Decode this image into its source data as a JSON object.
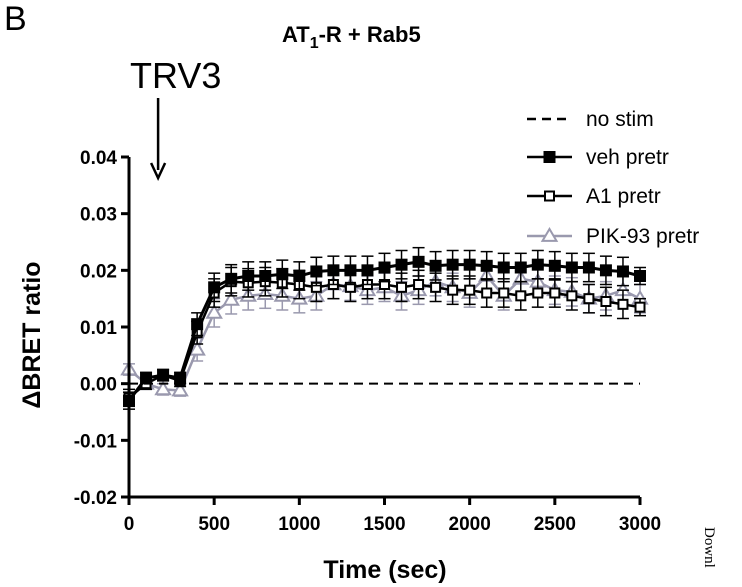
{
  "panel_label": "B",
  "watermark": "Downl",
  "chart_data": {
    "type": "line",
    "title": {
      "prefix": "AT",
      "subscript": "1",
      "suffix": "-R + Rab5"
    },
    "annotation": {
      "text": "TRV3",
      "x": 300
    },
    "xlabel": "Time (sec)",
    "ylabel": "ΔBRET ratio",
    "xlim": [
      0,
      3000
    ],
    "ylim": [
      -0.02,
      0.04
    ],
    "xticks": [
      0,
      500,
      1000,
      1500,
      2000,
      2500,
      3000
    ],
    "yticks": [
      -0.02,
      -0.01,
      0.0,
      0.01,
      0.02,
      0.03,
      0.04
    ],
    "ytick_labels": [
      "-0.02",
      "-0.01",
      "0.00",
      "0.01",
      "0.02",
      "0.03",
      "0.04"
    ],
    "xtick_labels": [
      "0",
      "500",
      "1000",
      "1500",
      "2000",
      "2500",
      "3000"
    ],
    "legend_position": "top-right",
    "series": [
      {
        "name": "no stim",
        "style": "dashed",
        "color": "#000000",
        "marker": "none",
        "x": [
          0,
          3000
        ],
        "y": [
          0.0,
          0.0
        ],
        "err": [
          0,
          0
        ]
      },
      {
        "name": "veh pretr",
        "style": "solid",
        "color": "#000000",
        "marker": "filled-square",
        "x": [
          0,
          100,
          200,
          300,
          400,
          500,
          600,
          700,
          800,
          900,
          1000,
          1100,
          1200,
          1300,
          1400,
          1500,
          1600,
          1700,
          1800,
          1900,
          2000,
          2100,
          2200,
          2300,
          2400,
          2500,
          2600,
          2700,
          2800,
          2900,
          3000
        ],
        "y": [
          -0.003,
          0.001,
          0.0015,
          0.001,
          0.0105,
          0.017,
          0.0185,
          0.019,
          0.019,
          0.0193,
          0.019,
          0.0198,
          0.02,
          0.02,
          0.02,
          0.0205,
          0.021,
          0.0215,
          0.0208,
          0.021,
          0.021,
          0.0208,
          0.0205,
          0.0205,
          0.021,
          0.0208,
          0.0205,
          0.0205,
          0.02,
          0.0198,
          0.019
        ],
        "err": [
          0.0015,
          0.001,
          0.001,
          0.001,
          0.002,
          0.0025,
          0.0025,
          0.0025,
          0.0025,
          0.0025,
          0.0025,
          0.0025,
          0.0025,
          0.0025,
          0.0025,
          0.0025,
          0.0025,
          0.0025,
          0.0025,
          0.0025,
          0.0025,
          0.0025,
          0.0025,
          0.0025,
          0.0025,
          0.0025,
          0.0025,
          0.0025,
          0.0025,
          0.0025,
          0.0015
        ]
      },
      {
        "name": "A1 pretr",
        "style": "solid",
        "color": "#000000",
        "marker": "open-square",
        "x": [
          0,
          100,
          200,
          300,
          400,
          500,
          600,
          700,
          800,
          900,
          1000,
          1100,
          1200,
          1300,
          1400,
          1500,
          1600,
          1700,
          1800,
          1900,
          2000,
          2100,
          2200,
          2300,
          2400,
          2500,
          2600,
          2700,
          2800,
          2900,
          3000
        ],
        "y": [
          -0.0025,
          0.0,
          0.0015,
          0.0005,
          0.009,
          0.016,
          0.018,
          0.0178,
          0.018,
          0.0178,
          0.0175,
          0.017,
          0.0175,
          0.017,
          0.0175,
          0.0175,
          0.017,
          0.0175,
          0.017,
          0.0165,
          0.0165,
          0.016,
          0.016,
          0.0155,
          0.016,
          0.016,
          0.0155,
          0.015,
          0.0145,
          0.014,
          0.0135
        ],
        "err": [
          0.0015,
          0.001,
          0.001,
          0.001,
          0.002,
          0.0025,
          0.0025,
          0.0025,
          0.0025,
          0.0025,
          0.0025,
          0.0025,
          0.0025,
          0.0025,
          0.0025,
          0.0025,
          0.0025,
          0.0025,
          0.0025,
          0.0025,
          0.0025,
          0.0025,
          0.0025,
          0.0025,
          0.0025,
          0.0025,
          0.0025,
          0.0025,
          0.0025,
          0.0025,
          0.0015
        ]
      },
      {
        "name": "PIK-93 pretr",
        "style": "solid",
        "color": "#9a99ae",
        "marker": "open-triangle",
        "x": [
          0,
          100,
          200,
          300,
          400,
          500,
          600,
          700,
          800,
          900,
          1000,
          1100,
          1200,
          1300,
          1400,
          1500,
          1600,
          1700,
          1800,
          1900,
          2000,
          2100,
          2200,
          2300,
          2400,
          2500,
          2600,
          2700,
          2800,
          2900,
          3000
        ],
        "y": [
          0.0025,
          0.0,
          -0.001,
          -0.0012,
          0.006,
          0.0125,
          0.0148,
          0.0155,
          0.0158,
          0.0155,
          0.015,
          0.0155,
          0.0175,
          0.0172,
          0.0165,
          0.017,
          0.0155,
          0.0165,
          0.018,
          0.017,
          0.016,
          0.019,
          0.0155,
          0.0185,
          0.018,
          0.0165,
          0.0162,
          0.015,
          0.0155,
          0.0165,
          0.015
        ],
        "err": [
          0.001,
          0.001,
          0.001,
          0.001,
          0.002,
          0.0025,
          0.0025,
          0.0025,
          0.0025,
          0.0025,
          0.0025,
          0.0025,
          0.0025,
          0.0025,
          0.0025,
          0.0025,
          0.0025,
          0.0025,
          0.0025,
          0.0025,
          0.0025,
          0.0025,
          0.0025,
          0.0025,
          0.0025,
          0.0025,
          0.0025,
          0.0025,
          0.0025,
          0.0025,
          0.0025
        ]
      }
    ]
  }
}
